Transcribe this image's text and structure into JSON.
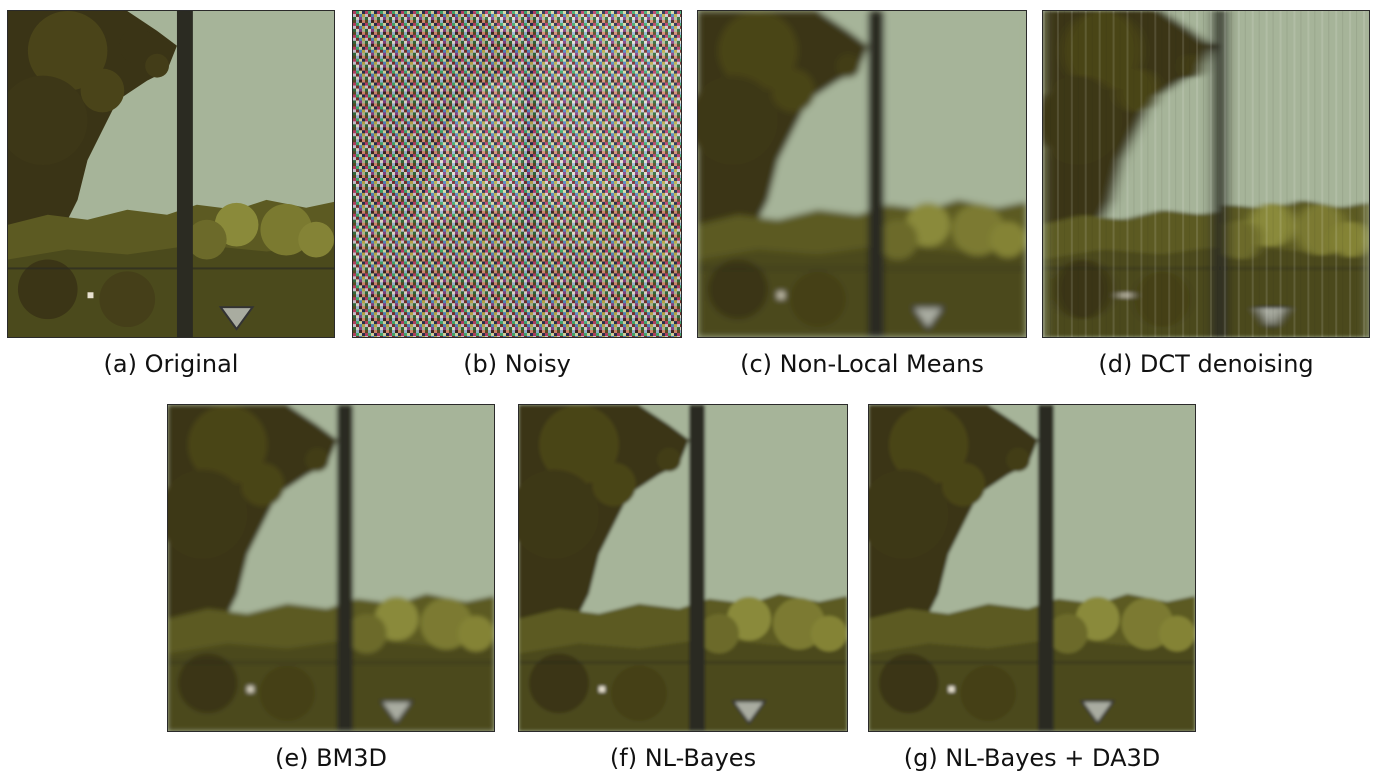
{
  "figure": {
    "panels": [
      {
        "id": "a",
        "caption": "(a) Original",
        "style": "sharp"
      },
      {
        "id": "b",
        "caption": "(b) Noisy",
        "style": "noisy"
      },
      {
        "id": "c",
        "caption": "(c) Non-Local Means",
        "style": "smooth"
      },
      {
        "id": "d",
        "caption": "(d) DCT denoising",
        "style": "streaky"
      },
      {
        "id": "e",
        "caption": "(e) BM3D",
        "style": "smooth"
      },
      {
        "id": "f",
        "caption": "(f) NL-Bayes",
        "style": "smooth"
      },
      {
        "id": "g",
        "caption": "(g) NL-Bayes + DA3D",
        "style": "smooth"
      }
    ],
    "colors": {
      "sky": "#a6b499",
      "foliage_dark": "#3a3416",
      "foliage_mid": "#5c5a22",
      "foliage_light": "#8a8a3a",
      "pole": "#2b2b22"
    }
  }
}
